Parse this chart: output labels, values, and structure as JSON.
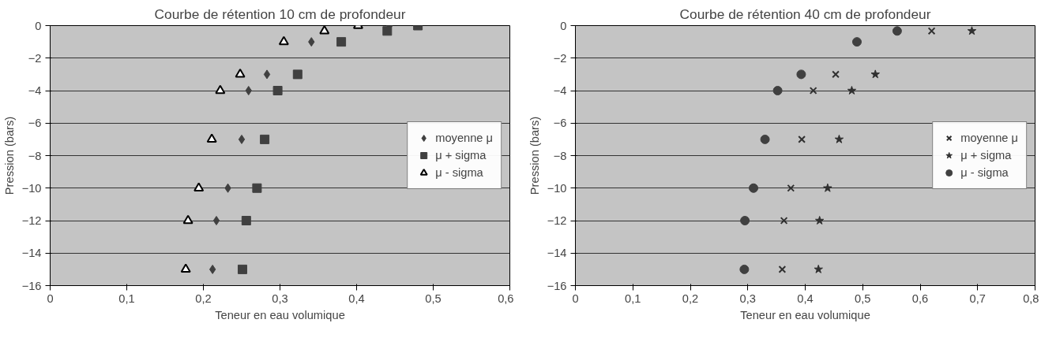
{
  "chart_data": [
    {
      "type": "scatter",
      "title": "Courbe de rétention 10 cm de profondeur",
      "xlabel": "Teneur en eau volumique",
      "ylabel": "Pression (bars)",
      "xlim": [
        0,
        0.6
      ],
      "ylim": [
        -16,
        0
      ],
      "xticks": [
        0,
        {
          "value": 0.1,
          "label": "0,1"
        },
        {
          "value": 0.2,
          "label": "0,2"
        },
        {
          "value": 0.3,
          "label": "0,3"
        },
        {
          "value": 0.4,
          "label": "0,4"
        },
        {
          "value": 0.5,
          "label": "0,5"
        },
        {
          "value": 0.6,
          "label": "0,6"
        }
      ],
      "yticks": [
        0,
        -2,
        -4,
        -6,
        -8,
        -10,
        -12,
        -14,
        -16
      ],
      "grid": "y",
      "legend": "right",
      "series": [
        {
          "name": "moyenne μ",
          "color": "#404040",
          "marker": "diamond",
          "x": [
            0.443,
            0.341,
            0.283,
            0.259,
            0.25,
            0.232,
            0.217,
            0.212
          ],
          "values": [
            0,
            -1,
            -3,
            -4,
            -7,
            -10,
            -12,
            -15
          ]
        },
        {
          "name": "μ + sigma",
          "color": "#404040",
          "marker": "square",
          "x": [
            0.48,
            0.44,
            0.38,
            0.323,
            0.297,
            0.28,
            0.27,
            0.256,
            0.251
          ],
          "values": [
            0,
            -0.33,
            -1,
            -3,
            -4,
            -7,
            -10,
            -12,
            -15
          ]
        },
        {
          "name": "μ - sigma",
          "color": "#000000",
          "marker": "triangle",
          "x": [
            0.402,
            0.358,
            0.305,
            0.248,
            0.222,
            0.211,
            0.194,
            0.18,
            0.177
          ],
          "values": [
            0,
            -0.33,
            -1,
            -3,
            -4,
            -7,
            -10,
            -12,
            -15
          ]
        }
      ]
    },
    {
      "type": "scatter",
      "title": "Courbe de rétention 40 cm de profondeur",
      "xlabel": "Teneur en eau volumique",
      "ylabel": "Pression (bars)",
      "xlim": [
        0,
        0.8
      ],
      "ylim": [
        -16,
        0
      ],
      "xticks": [
        0,
        {
          "value": 0.1,
          "label": "0,1"
        },
        {
          "value": 0.2,
          "label": "0,2"
        },
        {
          "value": 0.3,
          "label": "0,3"
        },
        {
          "value": 0.4,
          "label": "0,4"
        },
        {
          "value": 0.5,
          "label": "0,5"
        },
        {
          "value": 0.6,
          "label": "0,6"
        },
        {
          "value": 0.7,
          "label": "0,7"
        },
        {
          "value": 0.8,
          "label": "0,8"
        }
      ],
      "yticks": [
        0,
        -2,
        -4,
        -6,
        -8,
        -10,
        -12,
        -14,
        -16
      ],
      "grid": "y",
      "legend": "right",
      "series": [
        {
          "name": "moyenne μ",
          "color": "#303030",
          "marker": "cross",
          "x": [
            0.62,
            0.453,
            0.414,
            0.394,
            0.375,
            0.363,
            0.36
          ],
          "values": [
            -0.33,
            -3,
            -4,
            -7,
            -10,
            -12,
            -15
          ]
        },
        {
          "name": "μ + sigma",
          "color": "#303030",
          "marker": "star",
          "x": [
            0.69,
            0.522,
            0.481,
            0.459,
            0.439,
            0.425,
            0.423
          ],
          "values": [
            -0.33,
            -3,
            -4,
            -7,
            -10,
            -12,
            -15
          ]
        },
        {
          "name": "μ - sigma",
          "color": "#404040",
          "marker": "circle",
          "x": [
            0.56,
            0.49,
            0.393,
            0.352,
            0.33,
            0.31,
            0.295,
            0.294
          ],
          "values": [
            -0.33,
            -1,
            -3,
            -4,
            -7,
            -10,
            -12,
            -15
          ]
        }
      ]
    }
  ]
}
